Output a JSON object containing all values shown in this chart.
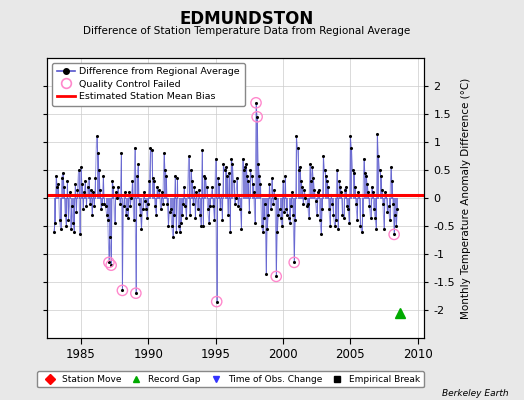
{
  "title": "EDMUNDSTON",
  "subtitle": "Difference of Station Temperature Data from Regional Average",
  "ylabel": "Monthly Temperature Anomaly Difference (°C)",
  "xlabel_ticks": [
    1985,
    1990,
    1995,
    2000,
    2005,
    2010
  ],
  "ylim": [
    -2.5,
    2.5
  ],
  "xlim": [
    1982.5,
    2010.5
  ],
  "bias_line": 0.05,
  "bg_color": "#e8e8e8",
  "plot_bg_color": "#ffffff",
  "line_color": "#5555cc",
  "marker_color": "#000000",
  "bias_color": "#ff0000",
  "qc_color": "#ff88cc",
  "record_gap_x": 2008.7,
  "record_gap_y": -2.05,
  "watermark": "Berkeley Earth",
  "yticks": [
    -2.0,
    -1.5,
    -1.0,
    -0.5,
    0.0,
    0.5,
    1.0,
    1.5,
    2.0
  ],
  "ytick_labels": [
    "-2",
    "-1.5",
    "-1",
    "-0.5",
    "0",
    "0.5",
    "1",
    "1.5",
    "2"
  ],
  "data": [
    [
      1983.0,
      -0.6
    ],
    [
      1983.083,
      -0.45
    ],
    [
      1983.167,
      0.4
    ],
    [
      1983.25,
      0.2
    ],
    [
      1983.333,
      0.25
    ],
    [
      1983.417,
      -0.4
    ],
    [
      1983.5,
      -0.55
    ],
    [
      1983.583,
      0.35
    ],
    [
      1983.667,
      0.45
    ],
    [
      1983.75,
      0.2
    ],
    [
      1983.833,
      -0.3
    ],
    [
      1983.917,
      -0.5
    ],
    [
      1984.0,
      0.3
    ],
    [
      1984.083,
      -0.4
    ],
    [
      1984.167,
      0.1
    ],
    [
      1984.25,
      -0.55
    ],
    [
      1984.333,
      -0.15
    ],
    [
      1984.417,
      -0.45
    ],
    [
      1984.5,
      -0.6
    ],
    [
      1984.583,
      0.25
    ],
    [
      1984.667,
      -0.25
    ],
    [
      1984.75,
      0.15
    ],
    [
      1984.833,
      0.5
    ],
    [
      1984.917,
      -0.65
    ],
    [
      1985.0,
      0.55
    ],
    [
      1985.083,
      0.25
    ],
    [
      1985.167,
      -0.2
    ],
    [
      1985.25,
      0.1
    ],
    [
      1985.333,
      0.3
    ],
    [
      1985.417,
      -0.15
    ],
    [
      1985.5,
      0.2
    ],
    [
      1985.583,
      0.35
    ],
    [
      1985.667,
      -0.1
    ],
    [
      1985.75,
      0.15
    ],
    [
      1985.833,
      -0.3
    ],
    [
      1985.917,
      0.1
    ],
    [
      1986.0,
      -0.15
    ],
    [
      1986.083,
      0.35
    ],
    [
      1986.167,
      1.1
    ],
    [
      1986.25,
      0.8
    ],
    [
      1986.333,
      0.5
    ],
    [
      1986.417,
      0.15
    ],
    [
      1986.5,
      -0.2
    ],
    [
      1986.583,
      -0.1
    ],
    [
      1986.667,
      0.4
    ],
    [
      1986.75,
      -0.1
    ],
    [
      1986.833,
      -0.15
    ],
    [
      1986.917,
      -0.3
    ],
    [
      1987.0,
      -0.4
    ],
    [
      1987.083,
      -1.15
    ],
    [
      1987.167,
      -0.7
    ],
    [
      1987.25,
      -1.2
    ],
    [
      1987.333,
      0.3
    ],
    [
      1987.417,
      0.2
    ],
    [
      1987.5,
      -0.45
    ],
    [
      1987.583,
      0.1
    ],
    [
      1987.667,
      0.0
    ],
    [
      1987.75,
      0.2
    ],
    [
      1987.833,
      0.05
    ],
    [
      1987.917,
      -0.1
    ],
    [
      1988.0,
      0.8
    ],
    [
      1988.083,
      -1.65
    ],
    [
      1988.167,
      -0.15
    ],
    [
      1988.25,
      0.1
    ],
    [
      1988.333,
      -0.3
    ],
    [
      1988.417,
      -0.2
    ],
    [
      1988.5,
      -0.35
    ],
    [
      1988.583,
      0.1
    ],
    [
      1988.667,
      -0.15
    ],
    [
      1988.75,
      0.0
    ],
    [
      1988.833,
      0.3
    ],
    [
      1988.917,
      -0.4
    ],
    [
      1989.0,
      0.9
    ],
    [
      1989.083,
      -1.7
    ],
    [
      1989.167,
      0.4
    ],
    [
      1989.25,
      0.6
    ],
    [
      1989.333,
      -0.1
    ],
    [
      1989.417,
      -0.3
    ],
    [
      1989.5,
      -0.55
    ],
    [
      1989.583,
      -0.2
    ],
    [
      1989.667,
      0.1
    ],
    [
      1989.75,
      -0.05
    ],
    [
      1989.833,
      -0.2
    ],
    [
      1989.917,
      -0.35
    ],
    [
      1990.0,
      -0.1
    ],
    [
      1990.083,
      0.3
    ],
    [
      1990.167,
      0.9
    ],
    [
      1990.25,
      0.85
    ],
    [
      1990.333,
      0.35
    ],
    [
      1990.417,
      0.3
    ],
    [
      1990.5,
      -0.15
    ],
    [
      1990.583,
      -0.3
    ],
    [
      1990.667,
      0.2
    ],
    [
      1990.75,
      0.05
    ],
    [
      1990.833,
      0.15
    ],
    [
      1990.917,
      -0.2
    ],
    [
      1991.0,
      0.1
    ],
    [
      1991.083,
      -0.1
    ],
    [
      1991.167,
      0.8
    ],
    [
      1991.25,
      0.5
    ],
    [
      1991.333,
      0.4
    ],
    [
      1991.417,
      -0.1
    ],
    [
      1991.5,
      -0.5
    ],
    [
      1991.583,
      -0.25
    ],
    [
      1991.667,
      -0.2
    ],
    [
      1991.75,
      -0.5
    ],
    [
      1991.833,
      -0.7
    ],
    [
      1991.917,
      -0.3
    ],
    [
      1992.0,
      0.4
    ],
    [
      1992.083,
      -0.6
    ],
    [
      1992.167,
      0.35
    ],
    [
      1992.25,
      -0.5
    ],
    [
      1992.333,
      -0.6
    ],
    [
      1992.417,
      -0.45
    ],
    [
      1992.5,
      -0.3
    ],
    [
      1992.583,
      -0.1
    ],
    [
      1992.667,
      0.2
    ],
    [
      1992.75,
      -0.15
    ],
    [
      1992.833,
      -0.35
    ],
    [
      1992.917,
      0.05
    ],
    [
      1993.0,
      0.75
    ],
    [
      1993.083,
      -0.3
    ],
    [
      1993.167,
      0.5
    ],
    [
      1993.25,
      0.3
    ],
    [
      1993.333,
      -0.1
    ],
    [
      1993.417,
      0.2
    ],
    [
      1993.5,
      -0.35
    ],
    [
      1993.583,
      0.1
    ],
    [
      1993.667,
      -0.2
    ],
    [
      1993.75,
      0.15
    ],
    [
      1993.833,
      -0.3
    ],
    [
      1993.917,
      -0.5
    ],
    [
      1994.0,
      0.85
    ],
    [
      1994.083,
      -0.5
    ],
    [
      1994.167,
      0.4
    ],
    [
      1994.25,
      0.35
    ],
    [
      1994.333,
      0.2
    ],
    [
      1994.417,
      -0.2
    ],
    [
      1994.5,
      -0.45
    ],
    [
      1994.583,
      -0.15
    ],
    [
      1994.667,
      0.05
    ],
    [
      1994.75,
      0.2
    ],
    [
      1994.833,
      -0.15
    ],
    [
      1994.917,
      -0.4
    ],
    [
      1995.0,
      0.7
    ],
    [
      1995.083,
      -1.85
    ],
    [
      1995.167,
      0.35
    ],
    [
      1995.25,
      0.25
    ],
    [
      1995.333,
      -0.2
    ],
    [
      1995.417,
      0.05
    ],
    [
      1995.5,
      -0.4
    ],
    [
      1995.583,
      0.6
    ],
    [
      1995.667,
      0.5
    ],
    [
      1995.75,
      0.55
    ],
    [
      1995.833,
      0.4
    ],
    [
      1995.917,
      -0.3
    ],
    [
      1996.0,
      0.45
    ],
    [
      1996.083,
      -0.6
    ],
    [
      1996.167,
      0.7
    ],
    [
      1996.25,
      0.6
    ],
    [
      1996.333,
      0.3
    ],
    [
      1996.417,
      -0.1
    ],
    [
      1996.5,
      0.0
    ],
    [
      1996.583,
      0.35
    ],
    [
      1996.667,
      -0.15
    ],
    [
      1996.75,
      0.05
    ],
    [
      1996.833,
      -0.2
    ],
    [
      1996.917,
      -0.55
    ],
    [
      1997.0,
      0.7
    ],
    [
      1997.083,
      0.5
    ],
    [
      1997.167,
      0.55
    ],
    [
      1997.25,
      0.6
    ],
    [
      1997.333,
      0.4
    ],
    [
      1997.417,
      0.3
    ],
    [
      1997.5,
      -0.25
    ],
    [
      1997.583,
      0.5
    ],
    [
      1997.667,
      0.4
    ],
    [
      1997.75,
      0.25
    ],
    [
      1997.833,
      0.1
    ],
    [
      1997.917,
      -0.45
    ],
    [
      1998.0,
      1.7
    ],
    [
      1998.083,
      1.45
    ],
    [
      1998.167,
      0.6
    ],
    [
      1998.25,
      0.4
    ],
    [
      1998.333,
      0.25
    ],
    [
      1998.417,
      -0.5
    ],
    [
      1998.5,
      -0.6
    ],
    [
      1998.583,
      -0.35
    ],
    [
      1998.667,
      -0.1
    ],
    [
      1998.75,
      -1.35
    ],
    [
      1998.833,
      -0.55
    ],
    [
      1998.917,
      -0.3
    ],
    [
      1999.0,
      0.25
    ],
    [
      1999.083,
      -0.2
    ],
    [
      1999.167,
      0.35
    ],
    [
      1999.25,
      -0.1
    ],
    [
      1999.333,
      0.15
    ],
    [
      1999.417,
      0.0
    ],
    [
      1999.5,
      -1.4
    ],
    [
      1999.583,
      -0.6
    ],
    [
      1999.667,
      -0.3
    ],
    [
      1999.75,
      -0.2
    ],
    [
      1999.833,
      -0.35
    ],
    [
      1999.917,
      -0.5
    ],
    [
      2000.0,
      0.3
    ],
    [
      2000.083,
      -0.25
    ],
    [
      2000.167,
      0.4
    ],
    [
      2000.25,
      -0.2
    ],
    [
      2000.333,
      -0.3
    ],
    [
      2000.417,
      -0.35
    ],
    [
      2000.5,
      -0.45
    ],
    [
      2000.583,
      -0.15
    ],
    [
      2000.667,
      0.1
    ],
    [
      2000.75,
      -0.3
    ],
    [
      2000.833,
      -1.15
    ],
    [
      2000.917,
      -0.4
    ],
    [
      2001.0,
      1.1
    ],
    [
      2001.083,
      0.9
    ],
    [
      2001.167,
      0.5
    ],
    [
      2001.25,
      0.55
    ],
    [
      2001.333,
      0.3
    ],
    [
      2001.417,
      0.2
    ],
    [
      2001.5,
      -0.1
    ],
    [
      2001.583,
      0.15
    ],
    [
      2001.667,
      0.0
    ],
    [
      2001.75,
      -0.15
    ],
    [
      2001.833,
      -0.1
    ],
    [
      2001.917,
      -0.35
    ],
    [
      2002.0,
      0.6
    ],
    [
      2002.083,
      0.3
    ],
    [
      2002.167,
      0.55
    ],
    [
      2002.25,
      0.35
    ],
    [
      2002.333,
      0.15
    ],
    [
      2002.417,
      -0.05
    ],
    [
      2002.5,
      -0.3
    ],
    [
      2002.583,
      0.1
    ],
    [
      2002.667,
      0.15
    ],
    [
      2002.75,
      -0.4
    ],
    [
      2002.833,
      -0.65
    ],
    [
      2002.917,
      -0.2
    ],
    [
      2003.0,
      0.75
    ],
    [
      2003.083,
      0.5
    ],
    [
      2003.167,
      0.4
    ],
    [
      2003.25,
      0.3
    ],
    [
      2003.333,
      0.2
    ],
    [
      2003.417,
      -0.2
    ],
    [
      2003.5,
      -0.5
    ],
    [
      2003.583,
      0.05
    ],
    [
      2003.667,
      -0.1
    ],
    [
      2003.75,
      -0.3
    ],
    [
      2003.833,
      -0.5
    ],
    [
      2003.917,
      -0.4
    ],
    [
      2004.0,
      0.5
    ],
    [
      2004.083,
      -0.55
    ],
    [
      2004.167,
      0.3
    ],
    [
      2004.25,
      0.2
    ],
    [
      2004.333,
      0.1
    ],
    [
      2004.417,
      -0.3
    ],
    [
      2004.5,
      -0.35
    ],
    [
      2004.583,
      0.15
    ],
    [
      2004.667,
      0.2
    ],
    [
      2004.75,
      -0.15
    ],
    [
      2004.833,
      -0.2
    ],
    [
      2004.917,
      -0.45
    ],
    [
      2005.0,
      1.1
    ],
    [
      2005.083,
      0.9
    ],
    [
      2005.167,
      0.5
    ],
    [
      2005.25,
      0.45
    ],
    [
      2005.333,
      0.2
    ],
    [
      2005.417,
      -0.1
    ],
    [
      2005.5,
      -0.4
    ],
    [
      2005.583,
      0.1
    ],
    [
      2005.667,
      0.05
    ],
    [
      2005.75,
      -0.5
    ],
    [
      2005.833,
      -0.6
    ],
    [
      2005.917,
      -0.3
    ],
    [
      2006.0,
      0.7
    ],
    [
      2006.083,
      0.45
    ],
    [
      2006.167,
      0.4
    ],
    [
      2006.25,
      0.25
    ],
    [
      2006.333,
      0.1
    ],
    [
      2006.417,
      -0.15
    ],
    [
      2006.5,
      -0.35
    ],
    [
      2006.583,
      0.2
    ],
    [
      2006.667,
      0.1
    ],
    [
      2006.75,
      -0.2
    ],
    [
      2006.833,
      -0.35
    ],
    [
      2006.917,
      -0.55
    ],
    [
      2007.0,
      1.15
    ],
    [
      2007.083,
      0.75
    ],
    [
      2007.167,
      0.5
    ],
    [
      2007.25,
      0.4
    ],
    [
      2007.333,
      0.15
    ],
    [
      2007.417,
      -0.1
    ],
    [
      2007.5,
      -0.55
    ],
    [
      2007.583,
      0.1
    ],
    [
      2007.667,
      0.05
    ],
    [
      2007.75,
      -0.25
    ],
    [
      2007.833,
      -0.15
    ],
    [
      2007.917,
      -0.4
    ],
    [
      2008.0,
      0.55
    ],
    [
      2008.083,
      0.3
    ],
    [
      2008.167,
      -0.1
    ],
    [
      2008.25,
      -0.65
    ],
    [
      2008.333,
      -0.3
    ],
    [
      2008.417,
      -0.5
    ],
    [
      2008.5,
      -0.2
    ]
  ],
  "qc_failed": [
    [
      1987.083,
      -1.15
    ],
    [
      1987.25,
      -1.2
    ],
    [
      1988.083,
      -1.65
    ],
    [
      1989.083,
      -1.7
    ],
    [
      1995.083,
      -1.85
    ],
    [
      1998.0,
      1.7
    ],
    [
      1998.083,
      1.45
    ],
    [
      1999.5,
      -1.4
    ],
    [
      2000.833,
      -1.15
    ],
    [
      2008.25,
      -0.65
    ]
  ]
}
